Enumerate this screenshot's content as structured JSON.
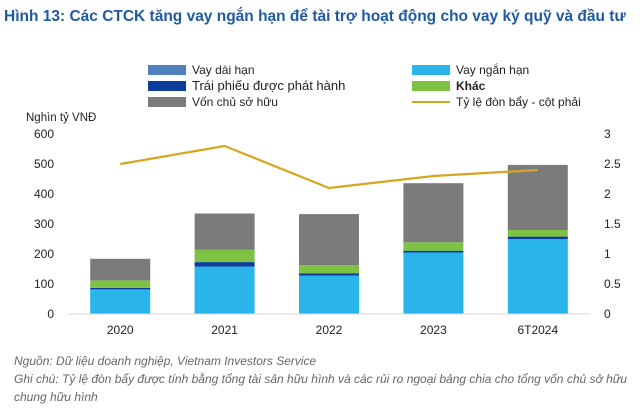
{
  "title": "Hình 13: Các CTCK tăng vay ngắn hạn để tài trợ hoạt động cho vay ký quỹ và đầu tư",
  "unit_label": "Nghìn tỷ VNĐ",
  "source": "Nguồn: Dữ liệu doanh nghiệp, Vietnam Investors Service",
  "note": "Ghi chú: Tỷ lệ đòn bẩy được tính bằng tổng tài sản hữu hình và các rủi ro ngoại bảng chia cho tổng vốn chủ sở hữu chung hữu hình",
  "colors": {
    "title": "#1f5aa6",
    "vay_dai_han": "#4f81bd",
    "vay_ngan_han": "#29b5ea",
    "trai_phieu": "#0d3d9c",
    "khac": "#7dc243",
    "von_chu": "#7b7b7b",
    "leverage": "#d9a520"
  },
  "chart_data": {
    "type": "bar",
    "stacked": true,
    "categories": [
      "2020",
      "2021",
      "2022",
      "2023",
      "6T2024"
    ],
    "series": [
      {
        "name": "Vay dài hạn",
        "key": "vay_dai_han",
        "values": [
          0,
          0,
          0,
          0,
          0
        ]
      },
      {
        "name": "Vay ngắn hạn",
        "key": "vay_ngan_han",
        "values": [
          82,
          158,
          128,
          205,
          250
        ]
      },
      {
        "name": "Trái phiếu được phát hành",
        "key": "trai_phieu",
        "values": [
          5,
          15,
          7,
          6,
          8
        ]
      },
      {
        "name": "Khác",
        "key": "khac",
        "values": [
          25,
          42,
          28,
          28,
          22
        ]
      },
      {
        "name": "Vốn chủ sở hữu",
        "key": "von_chu",
        "values": [
          72,
          120,
          170,
          197,
          217
        ]
      }
    ],
    "line_series": {
      "name": "Tỷ lệ đòn bẩy - cột phải",
      "key": "leverage",
      "values": [
        2.5,
        2.8,
        2.1,
        2.3,
        2.4
      ],
      "axis": "right"
    },
    "ylim": [
      0,
      600
    ],
    "yticks": [
      "0",
      "100",
      "200",
      "300",
      "400",
      "500",
      "600"
    ],
    "y2lim": [
      0,
      3
    ],
    "y2ticks": [
      "0",
      "0.5",
      "1",
      "1.5",
      "2",
      "2.5",
      "3"
    ],
    "ylabel": "Nghìn tỷ VNĐ",
    "grid": false,
    "legend": "top"
  }
}
